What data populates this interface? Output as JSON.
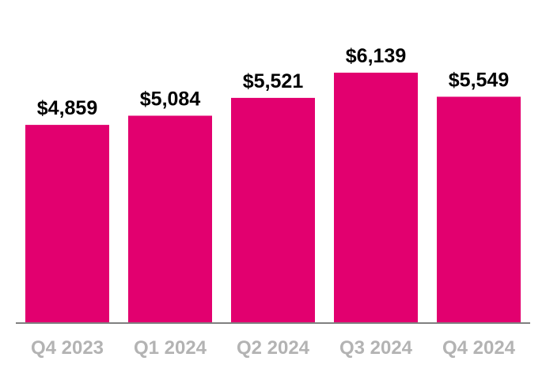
{
  "chart_data": {
    "type": "bar",
    "categories": [
      "Q4 2023",
      "Q1 2024",
      "Q2 2024",
      "Q3 2024",
      "Q4 2024"
    ],
    "values": [
      4859,
      5084,
      5521,
      6139,
      5549
    ],
    "value_labels": [
      "$4,859",
      "$5,084",
      "$5,521",
      "$6,139",
      "$5,549"
    ],
    "title": "",
    "xlabel": "",
    "ylabel": "",
    "ylim": [
      0,
      6139
    ],
    "grid": false,
    "legend": "none",
    "colors": {
      "bar": "#E2006F",
      "baseline": "#808080",
      "tick_label": "#B3B3B3",
      "value_label": "#000000"
    }
  }
}
